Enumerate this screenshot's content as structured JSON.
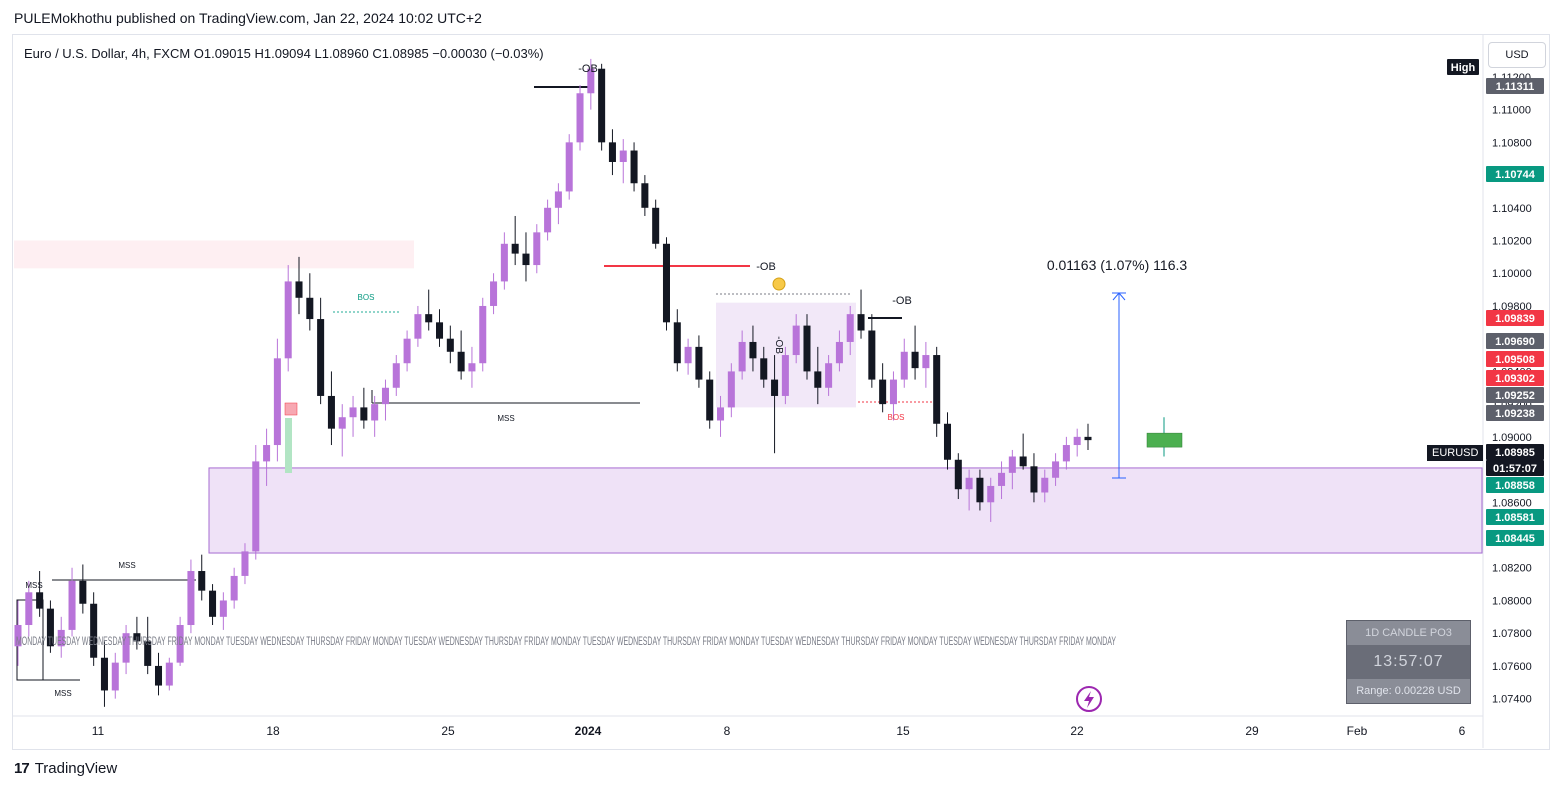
{
  "publisher_line": "PULEMokhothu published on TradingView.com, Jan 22, 2024 10:02 UTC+2",
  "brand": "TradingView",
  "legend": "Euro / U.S. Dollar, 4h, FXCM  O1.09015  H1.09094  L1.08960  C1.08985  −0.00030 (−0.03%)",
  "currency_button": "USD",
  "symbol_tag": "EURUSD",
  "info_box": {
    "title": "1D CANDLE PO3",
    "timer": "13:57:07",
    "range": "Range: 0.00228 USD"
  },
  "measure_label": "0.01163 (1.07%) 116.3",
  "colors": {
    "up": "#b874d9",
    "down": "#131722",
    "zone": "#e9d8f4",
    "zone_border": "#a66bd1",
    "ob_line": "#f23645",
    "measure": "#2962ff",
    "green_tag": "#089981",
    "red_tag": "#f23645"
  },
  "chart_data": {
    "type": "candlestick",
    "symbol": "EURUSD",
    "timeframe": "4h",
    "ylim": [
      1.073,
      1.1145
    ],
    "x_ticks": [
      "11",
      "18",
      "25",
      "2024",
      "8",
      "15",
      "22",
      "29",
      "Feb",
      "6"
    ],
    "y_ticks": [
      "1.11200",
      "1.11000",
      "1.10800",
      "1.10600",
      "1.10400",
      "1.10200",
      "1.10000",
      "1.09800",
      "1.09600",
      "1.09400",
      "1.09200",
      "1.09000",
      "1.08800",
      "1.08600",
      "1.08400",
      "1.08200",
      "1.08000",
      "1.07800",
      "1.07600",
      "1.07400"
    ],
    "price_tags": [
      {
        "label": "High",
        "value": null,
        "kind": "dark"
      },
      {
        "label": "1.11311",
        "value": 1.11311,
        "kind": "grey"
      },
      {
        "label": "1.10744",
        "value": 1.10744,
        "kind": "green"
      },
      {
        "label": "1.09839",
        "value": 1.09839,
        "kind": "red"
      },
      {
        "label": "1.09690",
        "value": 1.0969,
        "kind": "grey"
      },
      {
        "label": "1.09508",
        "value": 1.09508,
        "kind": "red"
      },
      {
        "label": "1.09302",
        "value": 1.09302,
        "kind": "red"
      },
      {
        "label": "1.09252",
        "value": 1.09252,
        "kind": "grey"
      },
      {
        "label": "1.09238",
        "value": 1.09238,
        "kind": "grey"
      },
      {
        "label": "1.08985",
        "value": 1.08985,
        "kind": "dark"
      },
      {
        "label": "01:57:07",
        "value": null,
        "kind": "dark"
      },
      {
        "label": "1.08858",
        "value": 1.08858,
        "kind": "green"
      },
      {
        "label": "1.08581",
        "value": 1.08581,
        "kind": "green"
      },
      {
        "label": "1.08445",
        "value": 1.08445,
        "kind": "green"
      }
    ],
    "annotations": [
      {
        "text": "-OB"
      },
      {
        "text": "-OB"
      },
      {
        "text": "-OB"
      },
      {
        "text": "BOS"
      },
      {
        "text": "BOS"
      },
      {
        "text": "MSS"
      },
      {
        "text": "MSS"
      },
      {
        "text": "MSS"
      },
      {
        "text": "MSS"
      },
      {
        "text": "-OB"
      }
    ],
    "day_labels": "MONDAY TUESDAY WEDNESDAY THURSDAY FRIDAY MONDAY TUESDAY WEDNESDAY THURSDAY FRIDAY MONDAY TUESDAY WEDNESDAY THURSDAY FRIDAY MONDAY TUESDAY WEDNESDAY THURSDAY FRIDAY MONDAY TUESDAY WEDNESDAY THURSDAY FRIDAY MONDAY TUESDAY WEDNESDAY THURSDAY FRIDAY MONDAY",
    "series": [
      {
        "ohlc": [
          [
            1.0772,
            1.08,
            1.076,
            1.0785
          ],
          [
            1.0785,
            1.0812,
            1.0778,
            1.0805
          ],
          [
            1.0805,
            1.0818,
            1.079,
            1.0795
          ],
          [
            1.0795,
            1.08,
            1.0768,
            1.0772
          ],
          [
            1.0772,
            1.079,
            1.0765,
            1.0782
          ],
          [
            1.0782,
            1.082,
            1.0778,
            1.0812
          ],
          [
            1.0812,
            1.0822,
            1.0792,
            1.0798
          ],
          [
            1.0798,
            1.0805,
            1.076,
            1.0765
          ],
          [
            1.0765,
            1.0775,
            1.0735,
            1.0745
          ],
          [
            1.0745,
            1.0768,
            1.074,
            1.0762
          ],
          [
            1.0762,
            1.0785,
            1.0755,
            1.078
          ],
          [
            1.078,
            1.079,
            1.077,
            1.0775
          ],
          [
            1.0775,
            1.079,
            1.0755,
            1.076
          ],
          [
            1.076,
            1.0768,
            1.0742,
            1.0748
          ],
          [
            1.0748,
            1.0765,
            1.0745,
            1.0762
          ],
          [
            1.0762,
            1.079,
            1.076,
            1.0785
          ],
          [
            1.0785,
            1.0825,
            1.078,
            1.0818
          ],
          [
            1.0818,
            1.0828,
            1.08,
            1.0806
          ],
          [
            1.0806,
            1.081,
            1.0785,
            1.079
          ],
          [
            1.079,
            1.0805,
            1.0782,
            1.08
          ],
          [
            1.08,
            1.082,
            1.0795,
            1.0815
          ],
          [
            1.0815,
            1.0835,
            1.081,
            1.083
          ],
          [
            1.083,
            1.0895,
            1.0825,
            1.0885
          ],
          [
            1.0885,
            1.0905,
            1.087,
            1.0895
          ],
          [
            1.0895,
            1.096,
            1.0885,
            1.0948
          ],
          [
            1.0948,
            1.1005,
            1.094,
            1.0995
          ],
          [
            1.0995,
            1.101,
            1.0975,
            1.0985
          ],
          [
            1.0985,
            1.1,
            1.0965,
            1.0972
          ],
          [
            1.0972,
            1.0985,
            1.092,
            1.0925
          ],
          [
            1.0925,
            1.094,
            1.0895,
            1.0905
          ],
          [
            1.0905,
            1.092,
            1.0888,
            1.0912
          ],
          [
            1.0912,
            1.0925,
            1.09,
            1.0918
          ],
          [
            1.0918,
            1.093,
            1.0905,
            1.091
          ],
          [
            1.091,
            1.0925,
            1.09,
            1.092
          ],
          [
            1.092,
            1.0935,
            1.091,
            1.093
          ],
          [
            1.093,
            1.095,
            1.0925,
            1.0945
          ],
          [
            1.0945,
            1.0965,
            1.094,
            1.096
          ],
          [
            1.096,
            1.098,
            1.0955,
            1.0975
          ],
          [
            1.0975,
            1.099,
            1.0965,
            1.097
          ],
          [
            1.097,
            1.0978,
            1.0955,
            1.096
          ],
          [
            1.096,
            1.0968,
            1.0945,
            1.0952
          ],
          [
            1.0952,
            1.0965,
            1.0935,
            1.094
          ],
          [
            1.094,
            1.0955,
            1.093,
            1.0945
          ],
          [
            1.0945,
            1.0985,
            1.094,
            1.098
          ],
          [
            1.098,
            1.1,
            1.0975,
            1.0995
          ],
          [
            1.0995,
            1.1025,
            1.099,
            1.1018
          ],
          [
            1.1018,
            1.1035,
            1.1005,
            1.1012
          ],
          [
            1.1012,
            1.1025,
            1.0995,
            1.1005
          ],
          [
            1.1005,
            1.103,
            1.1,
            1.1025
          ],
          [
            1.1025,
            1.1045,
            1.102,
            1.104
          ],
          [
            1.104,
            1.1055,
            1.103,
            1.105
          ],
          [
            1.105,
            1.1085,
            1.1045,
            1.108
          ],
          [
            1.108,
            1.1115,
            1.1075,
            1.111
          ],
          [
            1.111,
            1.1131,
            1.11,
            1.1125
          ],
          [
            1.1125,
            1.1128,
            1.1075,
            1.108
          ],
          [
            1.108,
            1.1088,
            1.106,
            1.1068
          ],
          [
            1.1068,
            1.1082,
            1.1055,
            1.1075
          ],
          [
            1.1075,
            1.108,
            1.105,
            1.1055
          ],
          [
            1.1055,
            1.106,
            1.1035,
            1.104
          ],
          [
            1.104,
            1.1045,
            1.1015,
            1.1018
          ],
          [
            1.1018,
            1.1022,
            1.0965,
            1.097
          ],
          [
            1.097,
            1.0978,
            1.094,
            1.0945
          ],
          [
            1.0945,
            1.096,
            1.0938,
            1.0955
          ],
          [
            1.0955,
            1.0962,
            1.093,
            1.0935
          ],
          [
            1.0935,
            1.094,
            1.0905,
            1.091
          ],
          [
            1.091,
            1.0925,
            1.09,
            1.0918
          ],
          [
            1.0918,
            1.0945,
            1.0912,
            1.094
          ],
          [
            1.094,
            1.0965,
            1.0935,
            1.0958
          ],
          [
            1.0958,
            1.0968,
            1.094,
            1.0948
          ],
          [
            1.0948,
            1.0955,
            1.093,
            1.0935
          ],
          [
            1.0935,
            1.095,
            1.089,
            1.0925
          ],
          [
            1.0925,
            1.0955,
            1.092,
            1.095
          ],
          [
            1.095,
            1.0975,
            1.0945,
            1.0968
          ],
          [
            1.0968,
            1.0975,
            1.0935,
            1.094
          ],
          [
            1.094,
            1.0955,
            1.092,
            1.093
          ],
          [
            1.093,
            1.095,
            1.0925,
            1.0945
          ],
          [
            1.0945,
            1.0965,
            1.094,
            1.0958
          ],
          [
            1.0958,
            1.098,
            1.095,
            1.0975
          ],
          [
            1.0975,
            1.099,
            1.096,
            1.0965
          ],
          [
            1.0965,
            1.0975,
            1.093,
            1.0935
          ],
          [
            1.0935,
            1.0945,
            1.0915,
            1.092
          ],
          [
            1.092,
            1.094,
            1.091,
            1.0935
          ],
          [
            1.0935,
            1.096,
            1.093,
            1.0952
          ],
          [
            1.0952,
            1.0968,
            1.0935,
            1.0942
          ],
          [
            1.0942,
            1.0958,
            1.093,
            1.095
          ],
          [
            1.095,
            1.0955,
            1.09,
            1.0908
          ],
          [
            1.0908,
            1.0915,
            1.088,
            1.0886
          ],
          [
            1.0886,
            1.089,
            1.0862,
            1.0868
          ],
          [
            1.0868,
            1.088,
            1.0855,
            1.0875
          ],
          [
            1.0875,
            1.088,
            1.0855,
            1.086
          ],
          [
            1.086,
            1.0875,
            1.0848,
            1.087
          ],
          [
            1.087,
            1.0885,
            1.0862,
            1.0878
          ],
          [
            1.0878,
            1.0892,
            1.0868,
            1.0888
          ],
          [
            1.0888,
            1.0902,
            1.088,
            1.0882
          ],
          [
            1.0882,
            1.089,
            1.086,
            1.0866
          ],
          [
            1.0866,
            1.088,
            1.086,
            1.0875
          ],
          [
            1.0875,
            1.089,
            1.087,
            1.0885
          ],
          [
            1.0885,
            1.09,
            1.088,
            1.0895
          ],
          [
            1.0895,
            1.0905,
            1.0888,
            1.09
          ],
          [
            1.09,
            1.0908,
            1.0892,
            1.0898
          ]
        ]
      }
    ],
    "zones": [
      {
        "name": "purple demand zone",
        "from": 1.0829,
        "to": 1.0881
      },
      {
        "name": "consolidation box",
        "from": 1.0918,
        "to": 1.0982
      },
      {
        "name": "pink supply zone",
        "from": 1.1003,
        "to": 1.102
      }
    ],
    "projection_candle": {
      "open": 1.0892,
      "high": 1.0912,
      "low": 1.0888,
      "close": 1.0898
    }
  }
}
